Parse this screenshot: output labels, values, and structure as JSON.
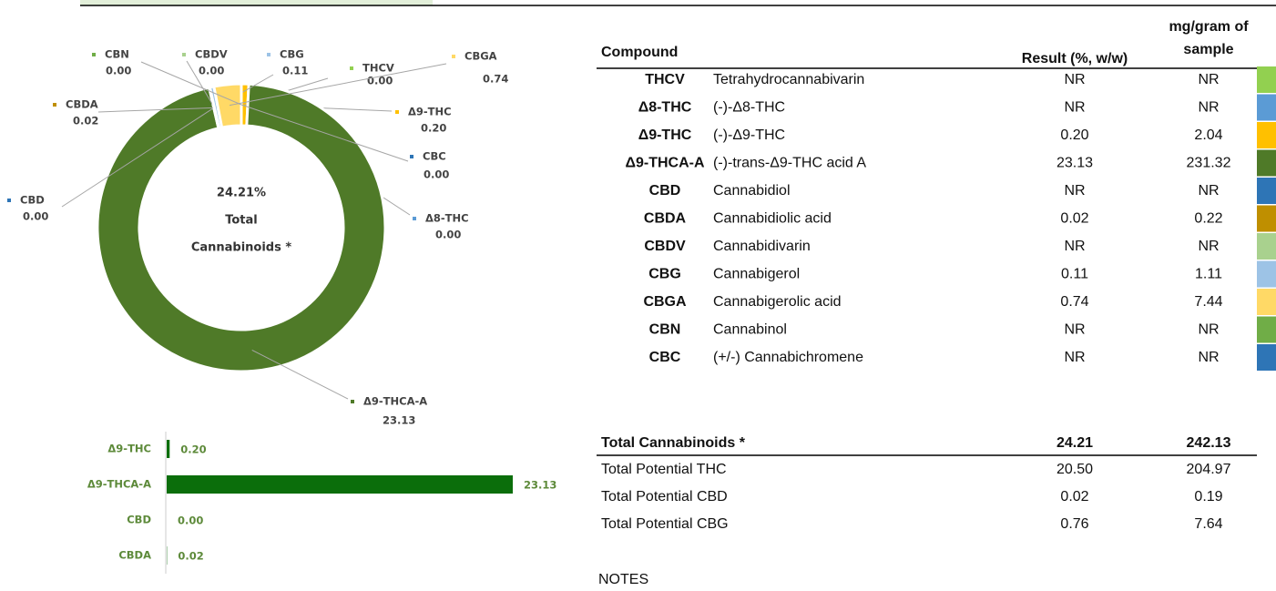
{
  "donut": {
    "type": "pie",
    "center_label": [
      "24.21%",
      "Total",
      "Cannabinoids *"
    ],
    "slices": [
      {
        "name": "THCV",
        "value": 0,
        "value_label": "0.00",
        "color": "#92d050"
      },
      {
        "name": "Δ8-THC",
        "value": 0,
        "value_label": "0.00",
        "color": "#5b9bd5"
      },
      {
        "name": "Δ9-THC",
        "value": 0.2,
        "value_label": "0.20",
        "color": "#ffc000"
      },
      {
        "name": "Δ9-THCA-A",
        "value": 23.13,
        "value_label": "23.13",
        "color": "#4f7a28"
      },
      {
        "name": "CBD",
        "value": 0,
        "value_label": "0.00",
        "color": "#2e75b6"
      },
      {
        "name": "CBDA",
        "value": 0.02,
        "value_label": "0.02",
        "color": "#bf8f00"
      },
      {
        "name": "CBDV",
        "value": 0,
        "value_label": "0.00",
        "color": "#a9d18e"
      },
      {
        "name": "CBG",
        "value": 0.11,
        "value_label": "0.11",
        "color": "#9dc3e6"
      },
      {
        "name": "CBGA",
        "value": 0.74,
        "value_label": "0.74",
        "color": "#ffd966"
      },
      {
        "name": "CBN",
        "value": 0,
        "value_label": "0.00",
        "color": "#70ad47"
      },
      {
        "name": "CBC",
        "value": 0,
        "value_label": "0.00",
        "color": "#2e75b6"
      }
    ]
  },
  "bar_chart": {
    "type": "bar",
    "categories": [
      "Δ9-THC",
      "Δ9-THCA-A",
      "CBD",
      "CBDA"
    ],
    "values": [
      0.2,
      23.13,
      0,
      0.02
    ],
    "value_labels": [
      "0.20",
      "23.13",
      "0.00",
      "0.02"
    ],
    "color": "#0b6e0b"
  },
  "table": {
    "header": [
      "Compound",
      "Result (%, w/w)",
      "mg/gram of",
      "sample"
    ],
    "rows": [
      {
        "abbr": "THCV",
        "name": "Tetrahydrocannabivarin",
        "result": "NR",
        "mg": "NR",
        "color": "#92d050"
      },
      {
        "abbr": "Δ8-THC",
        "name": "(-)-Δ8-THC",
        "result": "NR",
        "mg": "NR",
        "color": "#5b9bd5"
      },
      {
        "abbr": "Δ9-THC",
        "name": "(-)-Δ9-THC",
        "result": "0.20",
        "mg": "2.04",
        "color": "#ffc000"
      },
      {
        "abbr": "Δ9-THCA-A",
        "name": "(-)-trans-Δ9-THC acid A",
        "result": "23.13",
        "mg": "231.32",
        "color": "#4f7a28"
      },
      {
        "abbr": "CBD",
        "name": "Cannabidiol",
        "result": "NR",
        "mg": "NR",
        "color": "#2e75b6"
      },
      {
        "abbr": "CBDA",
        "name": "Cannabidiolic acid",
        "result": "0.02",
        "mg": "0.22",
        "color": "#bf8f00"
      },
      {
        "abbr": "CBDV",
        "name": "Cannabidivarin",
        "result": "NR",
        "mg": "NR",
        "color": "#a9d18e"
      },
      {
        "abbr": "CBG",
        "name": "Cannabigerol",
        "result": "0.11",
        "mg": "1.11",
        "color": "#9dc3e6"
      },
      {
        "abbr": "CBGA",
        "name": "Cannabigerolic acid",
        "result": "0.74",
        "mg": "7.44",
        "color": "#ffd966"
      },
      {
        "abbr": "CBN",
        "name": "Cannabinol",
        "result": "NR",
        "mg": "NR",
        "color": "#70ad47"
      },
      {
        "abbr": "CBC",
        "name": "(+/-) Cannabichromene",
        "result": "NR",
        "mg": "NR",
        "color": "#2e75b6"
      }
    ]
  },
  "totals": {
    "header": [
      "Total Cannabinoids *",
      "24.21",
      "242.13"
    ],
    "rows": [
      [
        "Total Potential THC",
        "20.50",
        "204.97"
      ],
      [
        "Total Potential CBD",
        "0.02",
        "0.19"
      ],
      [
        "Total Potential CBG",
        "0.76",
        "7.64"
      ]
    ]
  },
  "notes": "NOTES"
}
